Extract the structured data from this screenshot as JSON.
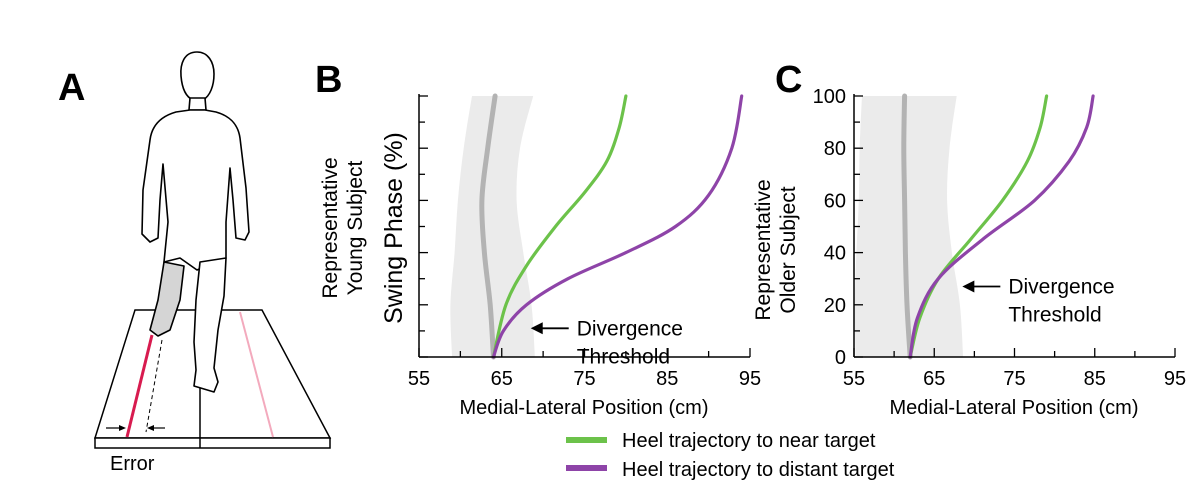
{
  "panel_a": {
    "letter": "A",
    "error_label": "Error"
  },
  "colors": {
    "near": "#6cc24a",
    "distant": "#8e44a8",
    "band": "#ebebeb",
    "mean": "#b3b3b3",
    "red_line": "#d81b4f",
    "pink_line": "#f3aabd"
  },
  "legend": {
    "near_label": "Heel trajectory to near target",
    "distant_label": "Heel trajectory to distant target"
  },
  "chart_data": [
    {
      "type": "line",
      "panel": "B",
      "ylabel_main": "Swing Phase (%)",
      "ylabel_sub1": "Representative",
      "ylabel_sub2": "Young Subject",
      "xlabel": "Medial-Lateral Position (cm)",
      "xlim": [
        55,
        95
      ],
      "ylim": [
        0,
        100
      ],
      "xticks": [
        55,
        65,
        75,
        85,
        95
      ],
      "yticks": [],
      "show_ytick_labels": false,
      "annotation": {
        "line1": "Divergence",
        "line2": "Threshold",
        "x": 68.5,
        "y": 11
      },
      "band": {
        "y": [
          0,
          20,
          40,
          60,
          80,
          100
        ],
        "lower": [
          59,
          58.8,
          59.3,
          59.7,
          60.4,
          61.4
        ],
        "upper": [
          69,
          68.6,
          67.6,
          66.8,
          67.2,
          68.8
        ]
      },
      "mean": {
        "y": [
          0,
          20,
          40,
          60,
          80,
          100
        ],
        "x": [
          64,
          63.6,
          62.9,
          62.6,
          63.3,
          64.2
        ]
      },
      "series": [
        {
          "name": "near",
          "x": [
            64,
            65.5,
            68,
            71.5,
            75,
            77.7,
            79.2,
            80
          ],
          "y": [
            0,
            20,
            35,
            50,
            63,
            75,
            88,
            100
          ]
        },
        {
          "name": "distant",
          "x": [
            64,
            65.2,
            68,
            73,
            80,
            86,
            90,
            92.8,
            94
          ],
          "y": [
            0,
            10,
            20,
            30,
            40,
            50,
            62,
            80,
            100
          ]
        }
      ]
    },
    {
      "type": "line",
      "panel": "C",
      "ylabel_sub1": "Representative",
      "ylabel_sub2": "Older Subject",
      "xlabel": "Medial-Lateral Position (cm)",
      "xlim": [
        55,
        95
      ],
      "ylim": [
        0,
        100
      ],
      "xticks": [
        55,
        65,
        75,
        85,
        95
      ],
      "yticks": [
        0,
        20,
        40,
        60,
        80,
        100
      ],
      "show_ytick_labels": true,
      "annotation": {
        "line1": "Divergence",
        "line2": "Threshold",
        "x": 68.5,
        "y": 27
      },
      "band": {
        "y": [
          0,
          20,
          40,
          60,
          80,
          100
        ],
        "lower": [
          55.2,
          55.1,
          55.3,
          55.6,
          55.7,
          56
        ],
        "upper": [
          68.6,
          68.2,
          67.2,
          66.6,
          66.9,
          67.8
        ]
      },
      "mean": {
        "y": [
          0,
          20,
          40,
          60,
          80,
          100
        ],
        "x": [
          62,
          61.6,
          61.4,
          61.3,
          61.2,
          61.3
        ]
      },
      "series": [
        {
          "name": "near",
          "x": [
            62,
            63.2,
            65.5,
            69.5,
            73.5,
            76.6,
            78.2,
            79
          ],
          "y": [
            0,
            15,
            30,
            45,
            60,
            75,
            88,
            100
          ]
        },
        {
          "name": "distant",
          "x": [
            62,
            62.9,
            65.5,
            71,
            77.5,
            81.8,
            84,
            84.8
          ],
          "y": [
            0,
            15,
            30,
            45,
            60,
            75,
            88,
            100
          ]
        }
      ]
    }
  ]
}
